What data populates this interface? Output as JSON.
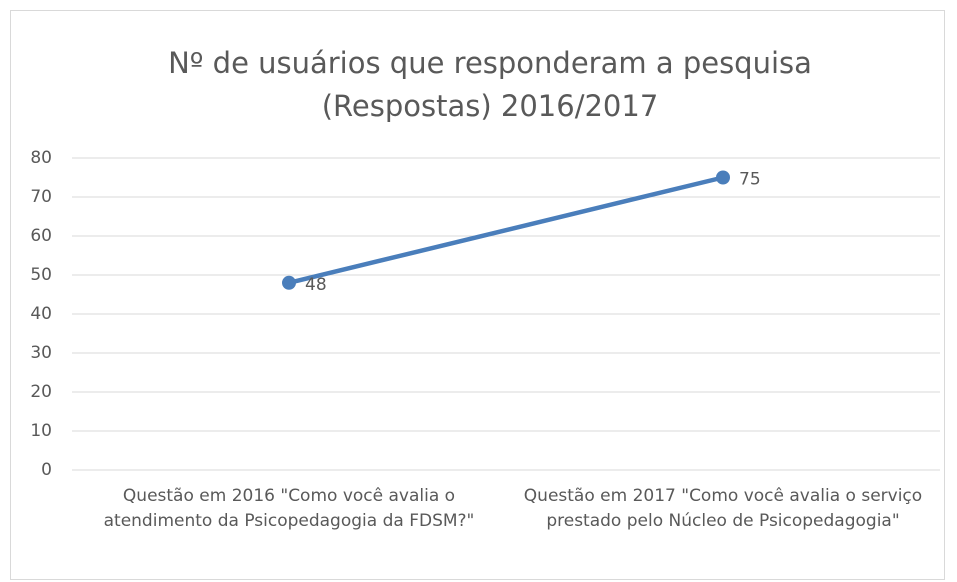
{
  "chart_data": {
    "type": "line",
    "title": "Nº de usuários que responderam a pesquisa (Respostas) 2016/2017",
    "categories": [
      "Questão em 2016 \"Como você avalia o atendimento da Psicopedagogia da FDSM?\"",
      "Questão em 2017 \"Como você avalia o serviço prestado pelo Núcleo de Psicopedagogia\""
    ],
    "series": [
      {
        "name": "Respostas",
        "color": "#4a7ebb",
        "values": [
          48,
          75
        ]
      }
    ],
    "ylim": [
      0,
      80
    ],
    "yticks": [
      0,
      10,
      20,
      30,
      40,
      50,
      60,
      70,
      80
    ],
    "grid": true
  }
}
